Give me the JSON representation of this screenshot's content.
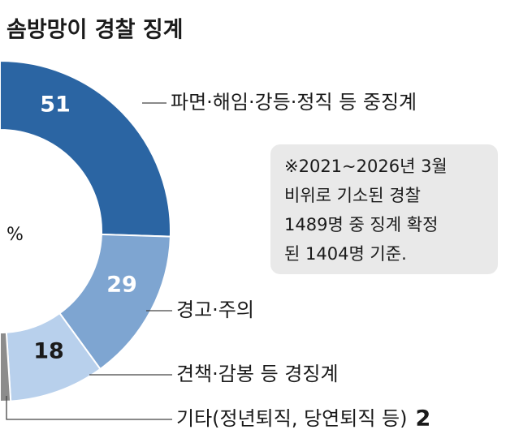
{
  "chart_data": {
    "type": "donut",
    "title": "솜방망이 경찰 징계",
    "unit": "%",
    "categories": [
      "파면·해임·강등·정직 등 중징계",
      "경고·주의",
      "견책·감봉 등 경징계",
      "기타(정년퇴직, 당연퇴직 등)"
    ],
    "values": [
      51,
      29,
      18,
      2
    ],
    "colors": [
      "#2b65a3",
      "#7ea5d1",
      "#b8d0ec",
      "#8c8c8c"
    ],
    "value_label_colors": [
      "#ffffff",
      "#ffffff",
      "#1a1a1a",
      "#1a1a1a"
    ],
    "note": [
      "※2021~2026년 3월",
      "비위로 기소된 경찰",
      "1489명 중 징계 확정",
      "된 1404명 기준."
    ]
  }
}
